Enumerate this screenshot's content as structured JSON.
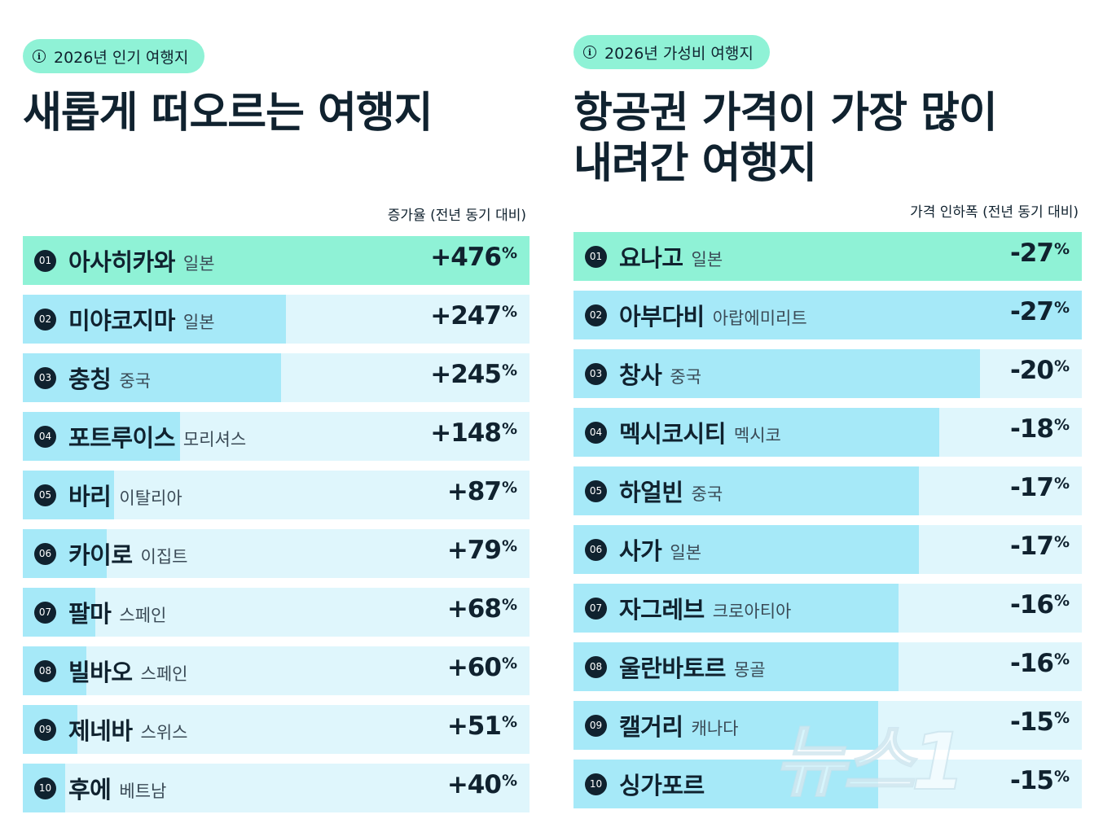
{
  "left": {
    "badge": "2026년 인기 여행지",
    "title": "새롭게 떠오르는 여행지",
    "column_label": "증가율 (전년 동기 대비)",
    "rows": [
      {
        "rank": "01",
        "name": "아사히카와",
        "country": "일본",
        "value": "+476",
        "unit": "%",
        "fill": 1.0
      },
      {
        "rank": "02",
        "name": "미야코지마",
        "country": "일본",
        "value": "+247",
        "unit": "%",
        "fill": 0.52
      },
      {
        "rank": "03",
        "name": "충칭",
        "country": "중국",
        "value": "+245",
        "unit": "%",
        "fill": 0.51
      },
      {
        "rank": "04",
        "name": "포트루이스",
        "country": "모리셔스",
        "value": "+148",
        "unit": "%",
        "fill": 0.31
      },
      {
        "rank": "05",
        "name": "바리",
        "country": "이탈리아",
        "value": "+87",
        "unit": "%",
        "fill": 0.18
      },
      {
        "rank": "06",
        "name": "카이로",
        "country": "이집트",
        "value": "+79",
        "unit": "%",
        "fill": 0.166
      },
      {
        "rank": "07",
        "name": "팔마",
        "country": "스페인",
        "value": "+68",
        "unit": "%",
        "fill": 0.143
      },
      {
        "rank": "08",
        "name": "빌바오",
        "country": "스페인",
        "value": "+60",
        "unit": "%",
        "fill": 0.126
      },
      {
        "rank": "09",
        "name": "제네바",
        "country": "스위스",
        "value": "+51",
        "unit": "%",
        "fill": 0.107
      },
      {
        "rank": "10",
        "name": "후에",
        "country": "베트남",
        "value": "+40",
        "unit": "%",
        "fill": 0.084
      }
    ]
  },
  "right": {
    "badge": "2026년 가성비 여행지",
    "title_line1": "항공권 가격이 가장 많이",
    "title_line2": "내려간 여행지",
    "column_label": "가격 인하폭 (전년 동기 대비)",
    "rows": [
      {
        "rank": "01",
        "name": "요나고",
        "country": "일본",
        "value": "-27",
        "unit": "%",
        "fill": 1.0
      },
      {
        "rank": "02",
        "name": "아부다비",
        "country": "아랍에미리트",
        "value": "-27",
        "unit": "%",
        "fill": 1.0
      },
      {
        "rank": "03",
        "name": "창사",
        "country": "중국",
        "value": "-20",
        "unit": "%",
        "fill": 0.8
      },
      {
        "rank": "04",
        "name": "멕시코시티",
        "country": "멕시코",
        "value": "-18",
        "unit": "%",
        "fill": 0.72
      },
      {
        "rank": "05",
        "name": "하얼빈",
        "country": "중국",
        "value": "-17",
        "unit": "%",
        "fill": 0.68
      },
      {
        "rank": "06",
        "name": "사가",
        "country": "일본",
        "value": "-17",
        "unit": "%",
        "fill": 0.68
      },
      {
        "rank": "07",
        "name": "자그레브",
        "country": "크로아티아",
        "value": "-16",
        "unit": "%",
        "fill": 0.64
      },
      {
        "rank": "08",
        "name": "울란바토르",
        "country": "몽골",
        "value": "-16",
        "unit": "%",
        "fill": 0.64
      },
      {
        "rank": "09",
        "name": "캘거리",
        "country": "캐나다",
        "value": "-15",
        "unit": "%",
        "fill": 0.6
      },
      {
        "rank": "10",
        "name": "싱가포르",
        "country": "",
        "value": "-15",
        "unit": "%",
        "fill": 0.6
      }
    ]
  },
  "watermark": "뉴스1"
}
